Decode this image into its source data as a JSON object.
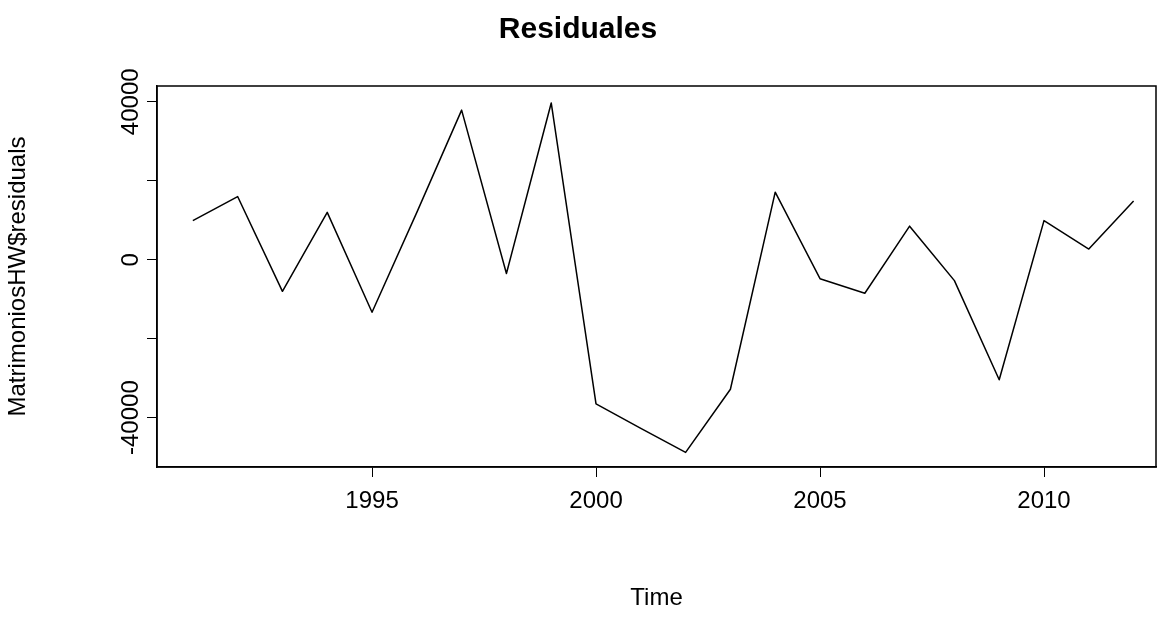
{
  "chart_data": {
    "type": "line",
    "title": "Residuales",
    "xlabel": "Time",
    "ylabel": "MatrimoniosHW$residuals",
    "x": [
      1991,
      1992,
      1993,
      1994,
      1995,
      1996,
      1997,
      1998,
      1999,
      2000,
      2001,
      2002,
      2003,
      2004,
      2005,
      2006,
      2007,
      2008,
      2009,
      2010,
      2011,
      2012
    ],
    "series": [
      {
        "color": "#000000",
        "values": [
          9900,
          16000,
          -8000,
          12000,
          -13300,
          12000,
          37900,
          -3500,
          39700,
          -36500,
          -42700,
          -48800,
          -32800,
          17100,
          -4800,
          -8500,
          8500,
          -5300,
          -30400,
          9900,
          2700,
          14900
        ]
      }
    ],
    "xlim": [
      1990.2,
      2012.5
    ],
    "xticks": [
      1995,
      2000,
      2005,
      2010
    ],
    "ylim": [
      -52500,
      44000
    ],
    "yticks": [
      -40000,
      {
        "value": -20000,
        "label": null
      },
      0,
      {
        "value": 20000,
        "label": null
      },
      40000
    ],
    "grid": false,
    "legend": false,
    "marker": "none",
    "line_style": "solid"
  }
}
